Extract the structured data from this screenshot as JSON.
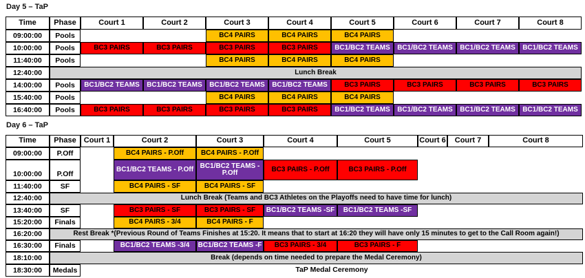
{
  "colors": {
    "bc4_pairs": {
      "bg": "#FFC000",
      "text": "#000000"
    },
    "bc3_pairs": {
      "bg": "#FF0000",
      "text": "#000000"
    },
    "bc1bc2_teams": {
      "bg": "#7030A0",
      "text": "#FFFFFF"
    },
    "break": {
      "bg": "#D4D4D4",
      "text": "#000000"
    }
  },
  "day5": {
    "title": "Day 5 – TaP",
    "headers": [
      "Time",
      "Phase",
      "Court 1",
      "Court 2",
      "Court 3",
      "Court 4",
      "Court 5",
      "Court 6",
      "Court 7",
      "Court 8"
    ],
    "rows": [
      {
        "time": "09:00:00",
        "phase": "Pools",
        "cells": [
          {
            "col": 3,
            "label": "BC4 PAIRS",
            "type": "bc4_pairs"
          },
          {
            "col": 4,
            "label": "BC4 PAIRS",
            "type": "bc4_pairs"
          },
          {
            "col": 5,
            "label": "BC4 PAIRS",
            "type": "bc4_pairs"
          }
        ]
      },
      {
        "time": "10:00:00",
        "phase": "Pools",
        "cells": [
          {
            "col": 1,
            "label": "BC3 PAIRS",
            "type": "bc3_pairs"
          },
          {
            "col": 2,
            "label": "BC3 PAIRS",
            "type": "bc3_pairs"
          },
          {
            "col": 3,
            "label": "BC3 PAIRS",
            "type": "bc3_pairs"
          },
          {
            "col": 4,
            "label": "BC3 PAIRS",
            "type": "bc3_pairs"
          },
          {
            "col": 5,
            "label": "BC1/BC2 TEAMS",
            "type": "bc1bc2_teams"
          },
          {
            "col": 6,
            "label": "BC1/BC2 TEAMS",
            "type": "bc1bc2_teams"
          },
          {
            "col": 7,
            "label": "BC1/BC2 TEAMS",
            "type": "bc1bc2_teams"
          },
          {
            "col": 8,
            "label": "BC1/BC2 TEAMS",
            "type": "bc1bc2_teams"
          }
        ]
      },
      {
        "time": "11:40:00",
        "phase": "Pools",
        "cells": [
          {
            "col": 3,
            "label": "BC4 PAIRS",
            "type": "bc4_pairs"
          },
          {
            "col": 4,
            "label": "BC4 PAIRS",
            "type": "bc4_pairs"
          },
          {
            "col": 5,
            "label": "BC4 PAIRS",
            "type": "bc4_pairs"
          }
        ]
      },
      {
        "time": "12:40:00",
        "break_label": "Lunch Break"
      },
      {
        "time": "14:00:00",
        "phase": "Pools",
        "cells": [
          {
            "col": 1,
            "label": "BC1/BC2 TEAMS",
            "type": "bc1bc2_teams"
          },
          {
            "col": 2,
            "label": "BC1/BC2 TEAMS",
            "type": "bc1bc2_teams"
          },
          {
            "col": 3,
            "label": "BC1/BC2 TEAMS",
            "type": "bc1bc2_teams"
          },
          {
            "col": 4,
            "label": "BC1/BC2 TEAMS",
            "type": "bc1bc2_teams"
          },
          {
            "col": 5,
            "label": "BC3 PAIRS",
            "type": "bc3_pairs"
          },
          {
            "col": 6,
            "label": "BC3 PAIRS",
            "type": "bc3_pairs"
          },
          {
            "col": 7,
            "label": "BC3 PAIRS",
            "type": "bc3_pairs"
          },
          {
            "col": 8,
            "label": "BC3 PAIRS",
            "type": "bc3_pairs"
          }
        ]
      },
      {
        "time": "15:40:00",
        "phase": "Pools",
        "cells": [
          {
            "col": 3,
            "label": "BC4 PAIRS",
            "type": "bc4_pairs"
          },
          {
            "col": 4,
            "label": "BC4 PAIRS",
            "type": "bc4_pairs"
          },
          {
            "col": 5,
            "label": "BC4 PAIRS",
            "type": "bc4_pairs"
          }
        ]
      },
      {
        "time": "16:40:00",
        "phase": "Pools",
        "cells": [
          {
            "col": 1,
            "label": "BC3 PAIRS",
            "type": "bc3_pairs"
          },
          {
            "col": 2,
            "label": "BC3 PAIRS",
            "type": "bc3_pairs"
          },
          {
            "col": 3,
            "label": "BC3 PAIRS",
            "type": "bc3_pairs"
          },
          {
            "col": 4,
            "label": "BC3 PAIRS",
            "type": "bc3_pairs"
          },
          {
            "col": 5,
            "label": "BC1/BC2 TEAMS",
            "type": "bc1bc2_teams"
          },
          {
            "col": 6,
            "label": "BC1/BC2 TEAMS",
            "type": "bc1bc2_teams"
          },
          {
            "col": 7,
            "label": "BC1/BC2 TEAMS",
            "type": "bc1bc2_teams"
          },
          {
            "col": 8,
            "label": "BC1/BC2 TEAMS",
            "type": "bc1bc2_teams"
          }
        ]
      }
    ]
  },
  "day6": {
    "title": "Day 6 – TaP",
    "headers": [
      "Time",
      "Phase",
      "Court 1",
      "Court 2",
      "Court 3",
      "Court 4",
      "Court 5",
      "Court 6",
      "Court 7",
      "Court 8"
    ],
    "rows": [
      {
        "time": "09:00:00",
        "phase": "P.Off",
        "cells": [
          {
            "col": 2,
            "label": "BC4 PAIRS - P.Off",
            "type": "bc4_pairs"
          },
          {
            "col": 3,
            "label": "BC4 PAIRS - P.Off",
            "type": "bc4_pairs"
          }
        ]
      },
      {
        "time": "10:00:00",
        "phase": "P.Off",
        "cells": [
          {
            "col": 2,
            "label": "BC1/BC2 TEAMS - P.Off",
            "type": "bc1bc2_teams"
          },
          {
            "col": 3,
            "label": "BC1/BC2 TEAMS - P.Off",
            "type": "bc1bc2_teams"
          },
          {
            "col": 4,
            "label": "BC3 PAIRS - P.Off",
            "type": "bc3_pairs"
          },
          {
            "col": 5,
            "label": "BC3 PAIRS - P.Off",
            "type": "bc3_pairs"
          }
        ]
      },
      {
        "time": "11:40:00",
        "phase": "SF",
        "cells": [
          {
            "col": 2,
            "label": "BC4 PAIRS - SF",
            "type": "bc4_pairs"
          },
          {
            "col": 3,
            "label": "BC4 PAIRS - SF",
            "type": "bc4_pairs"
          }
        ]
      },
      {
        "time": "12:40:00",
        "break_label": "Lunch Break (Teams and BC3 Athletes on the Playoffs need to have time for lunch)"
      },
      {
        "time": "13:40:00",
        "phase": "SF",
        "cells": [
          {
            "col": 2,
            "label": "BC3 PAIRS - SF",
            "type": "bc3_pairs"
          },
          {
            "col": 3,
            "label": "BC3 PAIRS - SF",
            "type": "bc3_pairs"
          },
          {
            "col": 4,
            "label": "BC1/BC2 TEAMS -SF",
            "type": "bc1bc2_teams"
          },
          {
            "col": 5,
            "label": "BC1/BC2 TEAMS -SF",
            "type": "bc1bc2_teams"
          }
        ]
      },
      {
        "time": "15:20:00",
        "phase": "Finals",
        "cells": [
          {
            "col": 2,
            "label": "BC4 PAIRS - 3/4",
            "type": "bc4_pairs"
          },
          {
            "col": 3,
            "label": "BC4 PAIRS - F",
            "type": "bc4_pairs"
          }
        ]
      },
      {
        "time": "16:20:00",
        "break_label": "Rest Break *(Previous Round of Teams Finishes at 15:20. It means that to start at 16:20 they will have only 15 minutes to get to the Call Room again!)"
      },
      {
        "time": "16:30:00",
        "phase": "Finals",
        "cells": [
          {
            "col": 2,
            "label": "BC1/BC2 TEAMS -3/4",
            "type": "bc1bc2_teams"
          },
          {
            "col": 3,
            "label": "BC1/BC2 TEAMS -F",
            "type": "bc1bc2_teams"
          },
          {
            "col": 4,
            "label": "BC3 PAIRS - 3/4",
            "type": "bc3_pairs"
          },
          {
            "col": 5,
            "label": "BC3 PAIRS - F",
            "type": "bc3_pairs"
          }
        ]
      },
      {
        "time": "18:10:00",
        "break_label": "Break (depends on time needed to prepare the Medal Ceremony)"
      },
      {
        "time": "18:30:00",
        "phase": "Medals",
        "note": "TaP Medal Ceremony"
      }
    ]
  }
}
